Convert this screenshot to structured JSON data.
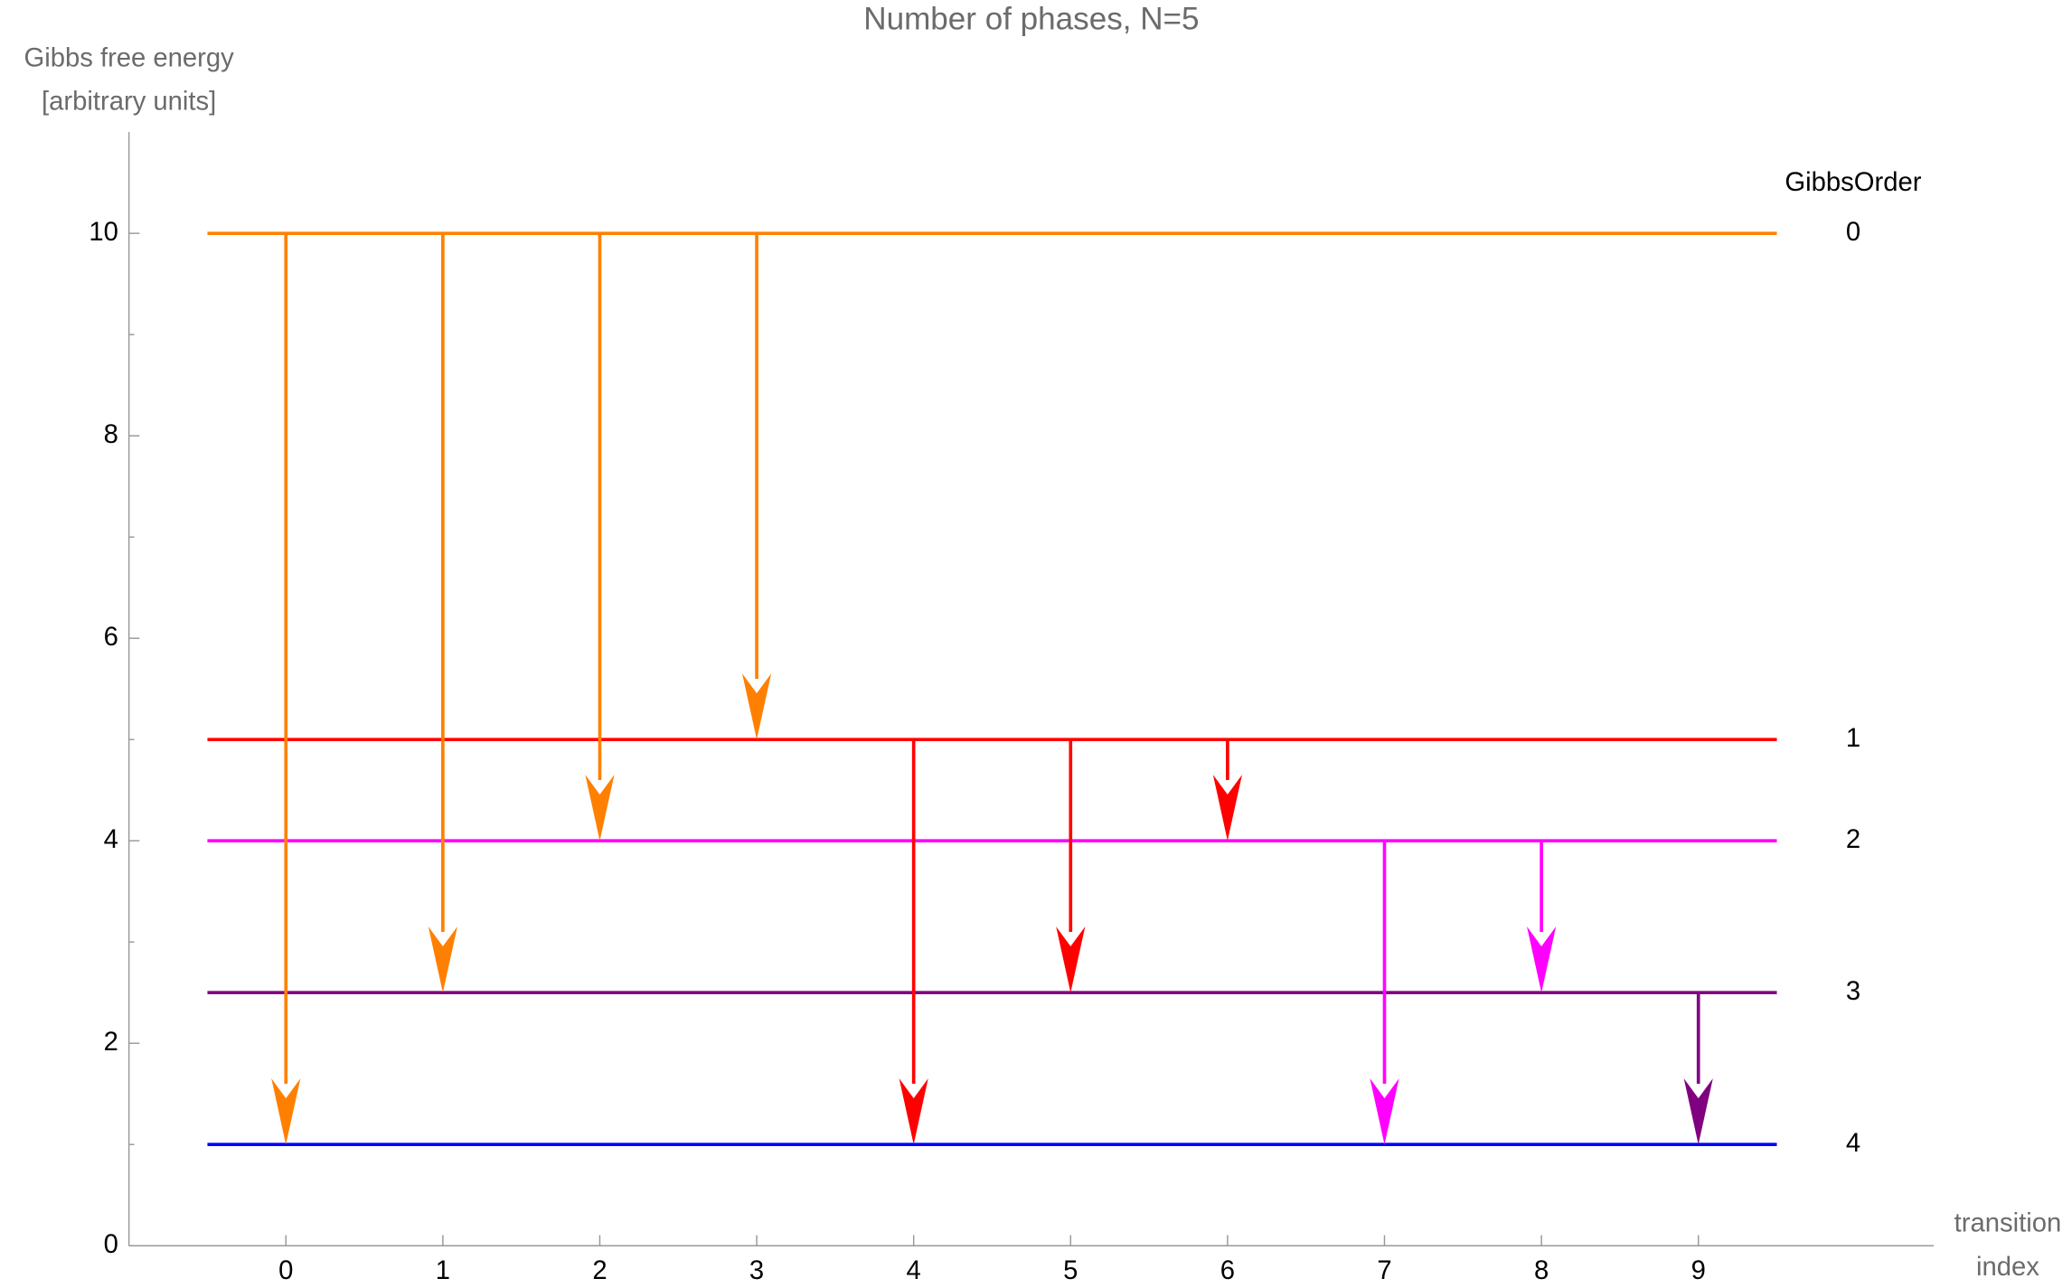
{
  "chart_data": {
    "type": "transition",
    "title": "Number of phases, N=5",
    "ylabel": [
      "Gibbs free energy",
      "[arbitrary units]"
    ],
    "xlabel": [
      "transition",
      "index"
    ],
    "legend_title": "GibbsOrder",
    "xlim": [
      -1,
      10.5
    ],
    "ylim": [
      0,
      11
    ],
    "xticks": [
      0,
      1,
      2,
      3,
      4,
      5,
      6,
      7,
      8,
      9
    ],
    "yticks": [
      0,
      2,
      4,
      6,
      8,
      10
    ],
    "yminorticks": [
      1,
      3,
      5,
      7,
      9
    ],
    "levels": {
      "names": [
        "0",
        "1",
        "2",
        "3",
        "4"
      ],
      "values": [
        10,
        5,
        4,
        2.5,
        1
      ],
      "colors": [
        "#ff8000",
        "#ff0000",
        "#ff00ff",
        "#800080",
        "#0000ff"
      ]
    },
    "transitions": {
      "x": [
        0,
        1,
        2,
        3,
        4,
        5,
        6,
        7,
        8,
        9
      ],
      "from": [
        10,
        10,
        10,
        10,
        5,
        5,
        5,
        4,
        4,
        2.5
      ],
      "to": [
        1,
        2.5,
        4,
        5,
        1,
        2.5,
        4,
        1,
        2.5,
        1
      ],
      "colors": [
        "#ff8000",
        "#ff8000",
        "#ff8000",
        "#ff8000",
        "#ff0000",
        "#ff0000",
        "#ff0000",
        "#ff00ff",
        "#ff00ff",
        "#800080"
      ]
    }
  }
}
